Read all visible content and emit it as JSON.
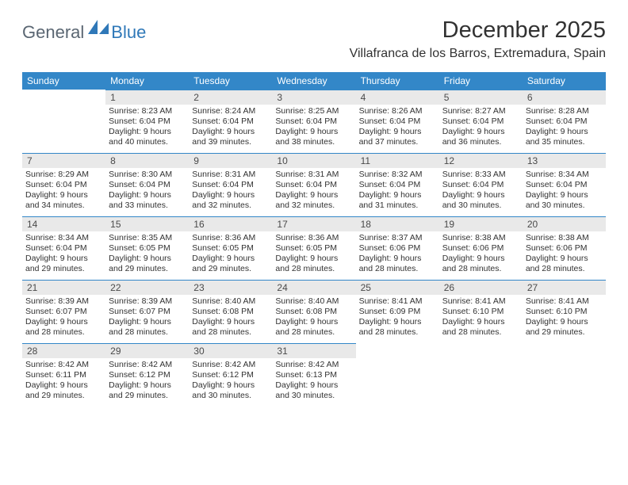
{
  "logo": {
    "general": "General",
    "blue": "Blue"
  },
  "title": "December 2025",
  "location": "Villafranca de los Barros, Extremadura, Spain",
  "colors": {
    "header_bg": "#3387c8",
    "header_text": "#ffffff",
    "daynum_bg": "#e9e9e9",
    "daynum_rule": "#3387c8",
    "text": "#323232",
    "logo_general": "#5a6672",
    "logo_blue": "#2f78b8"
  },
  "weekdays": [
    "Sunday",
    "Monday",
    "Tuesday",
    "Wednesday",
    "Thursday",
    "Friday",
    "Saturday"
  ],
  "weeks": [
    [
      null,
      {
        "n": "1",
        "sr": "8:23 AM",
        "ss": "6:04 PM",
        "dl": "9 hours and 40 minutes."
      },
      {
        "n": "2",
        "sr": "8:24 AM",
        "ss": "6:04 PM",
        "dl": "9 hours and 39 minutes."
      },
      {
        "n": "3",
        "sr": "8:25 AM",
        "ss": "6:04 PM",
        "dl": "9 hours and 38 minutes."
      },
      {
        "n": "4",
        "sr": "8:26 AM",
        "ss": "6:04 PM",
        "dl": "9 hours and 37 minutes."
      },
      {
        "n": "5",
        "sr": "8:27 AM",
        "ss": "6:04 PM",
        "dl": "9 hours and 36 minutes."
      },
      {
        "n": "6",
        "sr": "8:28 AM",
        "ss": "6:04 PM",
        "dl": "9 hours and 35 minutes."
      }
    ],
    [
      {
        "n": "7",
        "sr": "8:29 AM",
        "ss": "6:04 PM",
        "dl": "9 hours and 34 minutes."
      },
      {
        "n": "8",
        "sr": "8:30 AM",
        "ss": "6:04 PM",
        "dl": "9 hours and 33 minutes."
      },
      {
        "n": "9",
        "sr": "8:31 AM",
        "ss": "6:04 PM",
        "dl": "9 hours and 32 minutes."
      },
      {
        "n": "10",
        "sr": "8:31 AM",
        "ss": "6:04 PM",
        "dl": "9 hours and 32 minutes."
      },
      {
        "n": "11",
        "sr": "8:32 AM",
        "ss": "6:04 PM",
        "dl": "9 hours and 31 minutes."
      },
      {
        "n": "12",
        "sr": "8:33 AM",
        "ss": "6:04 PM",
        "dl": "9 hours and 30 minutes."
      },
      {
        "n": "13",
        "sr": "8:34 AM",
        "ss": "6:04 PM",
        "dl": "9 hours and 30 minutes."
      }
    ],
    [
      {
        "n": "14",
        "sr": "8:34 AM",
        "ss": "6:04 PM",
        "dl": "9 hours and 29 minutes."
      },
      {
        "n": "15",
        "sr": "8:35 AM",
        "ss": "6:05 PM",
        "dl": "9 hours and 29 minutes."
      },
      {
        "n": "16",
        "sr": "8:36 AM",
        "ss": "6:05 PM",
        "dl": "9 hours and 29 minutes."
      },
      {
        "n": "17",
        "sr": "8:36 AM",
        "ss": "6:05 PM",
        "dl": "9 hours and 28 minutes."
      },
      {
        "n": "18",
        "sr": "8:37 AM",
        "ss": "6:06 PM",
        "dl": "9 hours and 28 minutes."
      },
      {
        "n": "19",
        "sr": "8:38 AM",
        "ss": "6:06 PM",
        "dl": "9 hours and 28 minutes."
      },
      {
        "n": "20",
        "sr": "8:38 AM",
        "ss": "6:06 PM",
        "dl": "9 hours and 28 minutes."
      }
    ],
    [
      {
        "n": "21",
        "sr": "8:39 AM",
        "ss": "6:07 PM",
        "dl": "9 hours and 28 minutes."
      },
      {
        "n": "22",
        "sr": "8:39 AM",
        "ss": "6:07 PM",
        "dl": "9 hours and 28 minutes."
      },
      {
        "n": "23",
        "sr": "8:40 AM",
        "ss": "6:08 PM",
        "dl": "9 hours and 28 minutes."
      },
      {
        "n": "24",
        "sr": "8:40 AM",
        "ss": "6:08 PM",
        "dl": "9 hours and 28 minutes."
      },
      {
        "n": "25",
        "sr": "8:41 AM",
        "ss": "6:09 PM",
        "dl": "9 hours and 28 minutes."
      },
      {
        "n": "26",
        "sr": "8:41 AM",
        "ss": "6:10 PM",
        "dl": "9 hours and 28 minutes."
      },
      {
        "n": "27",
        "sr": "8:41 AM",
        "ss": "6:10 PM",
        "dl": "9 hours and 29 minutes."
      }
    ],
    [
      {
        "n": "28",
        "sr": "8:42 AM",
        "ss": "6:11 PM",
        "dl": "9 hours and 29 minutes."
      },
      {
        "n": "29",
        "sr": "8:42 AM",
        "ss": "6:12 PM",
        "dl": "9 hours and 29 minutes."
      },
      {
        "n": "30",
        "sr": "8:42 AM",
        "ss": "6:12 PM",
        "dl": "9 hours and 30 minutes."
      },
      {
        "n": "31",
        "sr": "8:42 AM",
        "ss": "6:13 PM",
        "dl": "9 hours and 30 minutes."
      },
      null,
      null,
      null
    ]
  ],
  "labels": {
    "sunrise": "Sunrise: ",
    "sunset": "Sunset: ",
    "daylight": "Daylight: "
  }
}
